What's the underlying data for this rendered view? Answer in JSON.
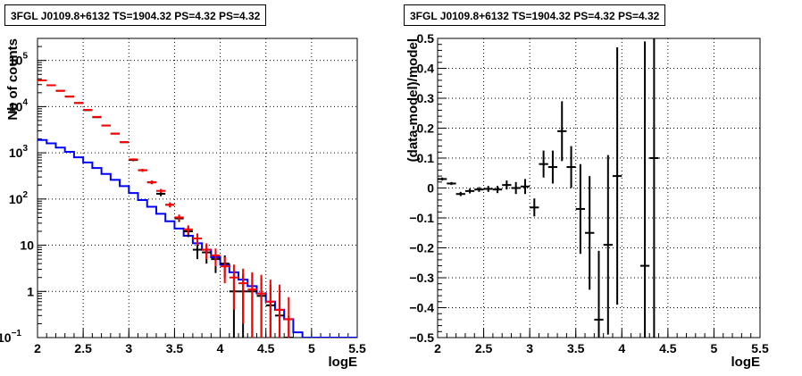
{
  "chart_data": [
    {
      "type": "line",
      "title": "3FGL J0109.8+6132 TS=1904.32 PS=4.32 PS=4.32",
      "xlabel": "logE",
      "ylabel": "Nb of counts",
      "xlim": [
        2,
        5.5
      ],
      "ylim": [
        0.1,
        300000
      ],
      "yscale": "log",
      "grid": true,
      "xticks": [
        "2",
        "2.5",
        "3",
        "3.5",
        "4",
        "4.5",
        "5",
        "5.5"
      ],
      "yticks": [
        {
          "v": 0.1,
          "label": "10",
          "sup": "−1"
        },
        {
          "v": 1,
          "label": "1",
          "sup": ""
        },
        {
          "v": 10,
          "label": "10",
          "sup": ""
        },
        {
          "v": 100,
          "label": "10",
          "sup": "2"
        },
        {
          "v": 1000,
          "label": "10",
          "sup": "3"
        },
        {
          "v": 10000,
          "label": "10",
          "sup": "4"
        },
        {
          "v": 100000,
          "label": "10",
          "sup": "5"
        }
      ],
      "series": [
        {
          "kind": "step",
          "color": "#0000ff",
          "edges": [
            2.0,
            2.1,
            2.2,
            2.3,
            2.4,
            2.5,
            2.6,
            2.7,
            2.8,
            2.9,
            3.0,
            3.1,
            3.2,
            3.3,
            3.4,
            3.5,
            3.6,
            3.7,
            3.8,
            3.9,
            4.0,
            4.1,
            4.2,
            4.3,
            4.4,
            4.5,
            4.6,
            4.7,
            4.8,
            4.9,
            5.0,
            5.1,
            5.2,
            5.3,
            5.4,
            5.5
          ],
          "values": [
            1900,
            1600,
            1300,
            1050,
            800,
            620,
            470,
            350,
            260,
            190,
            135,
            95,
            68,
            48,
            33,
            23,
            16,
            11,
            8,
            5.5,
            3.8,
            2.6,
            1.8,
            1.3,
            0.9,
            0.6,
            0.4,
            0.25,
            0.13,
            0.1,
            0.1,
            0.1,
            0.1,
            0.1,
            0.1
          ]
        },
        {
          "kind": "errorbar",
          "color": "#000000",
          "x": [
            2.05,
            2.15,
            2.25,
            2.35,
            2.45,
            2.55,
            2.65,
            2.75,
            2.85,
            2.95,
            3.05,
            3.15,
            3.25,
            3.35,
            3.45,
            3.55,
            3.65,
            3.75,
            3.85,
            3.95,
            4.05,
            4.15,
            4.25,
            4.35,
            4.45,
            4.55,
            4.65,
            4.75
          ],
          "y": [
            37000,
            29000,
            22000,
            16500,
            12000,
            8400,
            5900,
            3900,
            2600,
            1700,
            700,
            420,
            230,
            130,
            75,
            38,
            20,
            8,
            7,
            5,
            4,
            1,
            1,
            1,
            0.8,
            0.5,
            0.3,
            0.1
          ],
          "yerr_lo": [
            400,
            350,
            300,
            250,
            200,
            150,
            120,
            100,
            80,
            60,
            40,
            30,
            20,
            15,
            9,
            6,
            5,
            3,
            3,
            2.5,
            2,
            0.9,
            0.9,
            0.9,
            0.7,
            0.4,
            0.2,
            0.05
          ],
          "yerr_hi": [
            400,
            350,
            300,
            250,
            200,
            150,
            120,
            100,
            80,
            60,
            40,
            30,
            20,
            15,
            9,
            6,
            5,
            3,
            3,
            2.5,
            2,
            1.4,
            1.4,
            1.4,
            1.2,
            0.9,
            0.6,
            0.2
          ]
        },
        {
          "kind": "errorbar",
          "color": "#ff0000",
          "x": [
            2.05,
            2.15,
            2.25,
            2.35,
            2.45,
            2.55,
            2.65,
            2.75,
            2.85,
            2.95,
            3.05,
            3.15,
            3.25,
            3.35,
            3.45,
            3.55,
            3.65,
            3.75,
            3.85,
            3.95,
            4.05,
            4.15,
            4.25,
            4.35,
            4.45,
            4.55,
            4.65,
            4.75
          ],
          "y": [
            37000,
            29000,
            22000,
            16500,
            12000,
            8500,
            6000,
            3900,
            2600,
            1700,
            720,
            420,
            230,
            150,
            75,
            40,
            22,
            14,
            8,
            6,
            3.5,
            2,
            1.5,
            1.1,
            0.9,
            0.6,
            0.4,
            0.25
          ],
          "yerr_lo": [
            400,
            350,
            300,
            250,
            200,
            150,
            120,
            100,
            80,
            60,
            40,
            30,
            20,
            15,
            9,
            6,
            5,
            4,
            3,
            2.5,
            2,
            1.6,
            1.3,
            1.0,
            0.85,
            0.55,
            0.35,
            0.15
          ],
          "yerr_hi": [
            400,
            350,
            300,
            250,
            200,
            150,
            120,
            100,
            80,
            60,
            40,
            30,
            20,
            15,
            9,
            6,
            5,
            4,
            3,
            2.5,
            2,
            1.8,
            1.6,
            1.5,
            1.4,
            1.2,
            1.0,
            0.5
          ]
        }
      ]
    },
    {
      "type": "scatter",
      "title": "3FGL J0109.8+6132 TS=1904.32 PS=4.32 PS=4.32",
      "xlabel": "logE",
      "ylabel": "(data-model)/model",
      "xlim": [
        2,
        5.5
      ],
      "ylim": [
        -0.5,
        0.5
      ],
      "grid": true,
      "xticks": [
        "2",
        "2.5",
        "3",
        "3.5",
        "4",
        "4.5",
        "5",
        "5.5"
      ],
      "yticks": [
        {
          "v": -0.5,
          "label": "−0.5"
        },
        {
          "v": -0.4,
          "label": "−0.4"
        },
        {
          "v": -0.3,
          "label": "−0.3"
        },
        {
          "v": -0.2,
          "label": "−0.2"
        },
        {
          "v": -0.1,
          "label": "−0.1"
        },
        {
          "v": 0,
          "label": "0"
        },
        {
          "v": 0.1,
          "label": "0.1"
        },
        {
          "v": 0.2,
          "label": "0.2"
        },
        {
          "v": 0.3,
          "label": "0.3"
        },
        {
          "v": 0.4,
          "label": "0.4"
        },
        {
          "v": 0.5,
          "label": "0.5"
        }
      ],
      "series": [
        {
          "kind": "errorbar",
          "color": "#000000",
          "x": [
            2.05,
            2.15,
            2.25,
            2.35,
            2.45,
            2.55,
            2.65,
            2.75,
            2.85,
            2.95,
            3.05,
            3.15,
            3.25,
            3.35,
            3.45,
            3.55,
            3.65,
            3.75,
            3.85,
            3.95,
            4.25,
            4.35
          ],
          "y": [
            0.03,
            0.015,
            -0.02,
            -0.01,
            -0.005,
            -0.003,
            -0.005,
            0.01,
            0.0,
            0.005,
            -0.065,
            0.08,
            0.07,
            0.19,
            0.07,
            -0.07,
            -0.15,
            -0.44,
            -0.19,
            0.04,
            -0.26,
            0.1
          ],
          "yerr": [
            0.005,
            0.005,
            0.007,
            0.008,
            0.008,
            0.01,
            0.012,
            0.015,
            0.02,
            0.025,
            0.03,
            0.045,
            0.055,
            0.1,
            0.07,
            0.15,
            0.19,
            0.23,
            0.3,
            0.43,
            0.75,
            0.75
          ]
        }
      ]
    }
  ]
}
